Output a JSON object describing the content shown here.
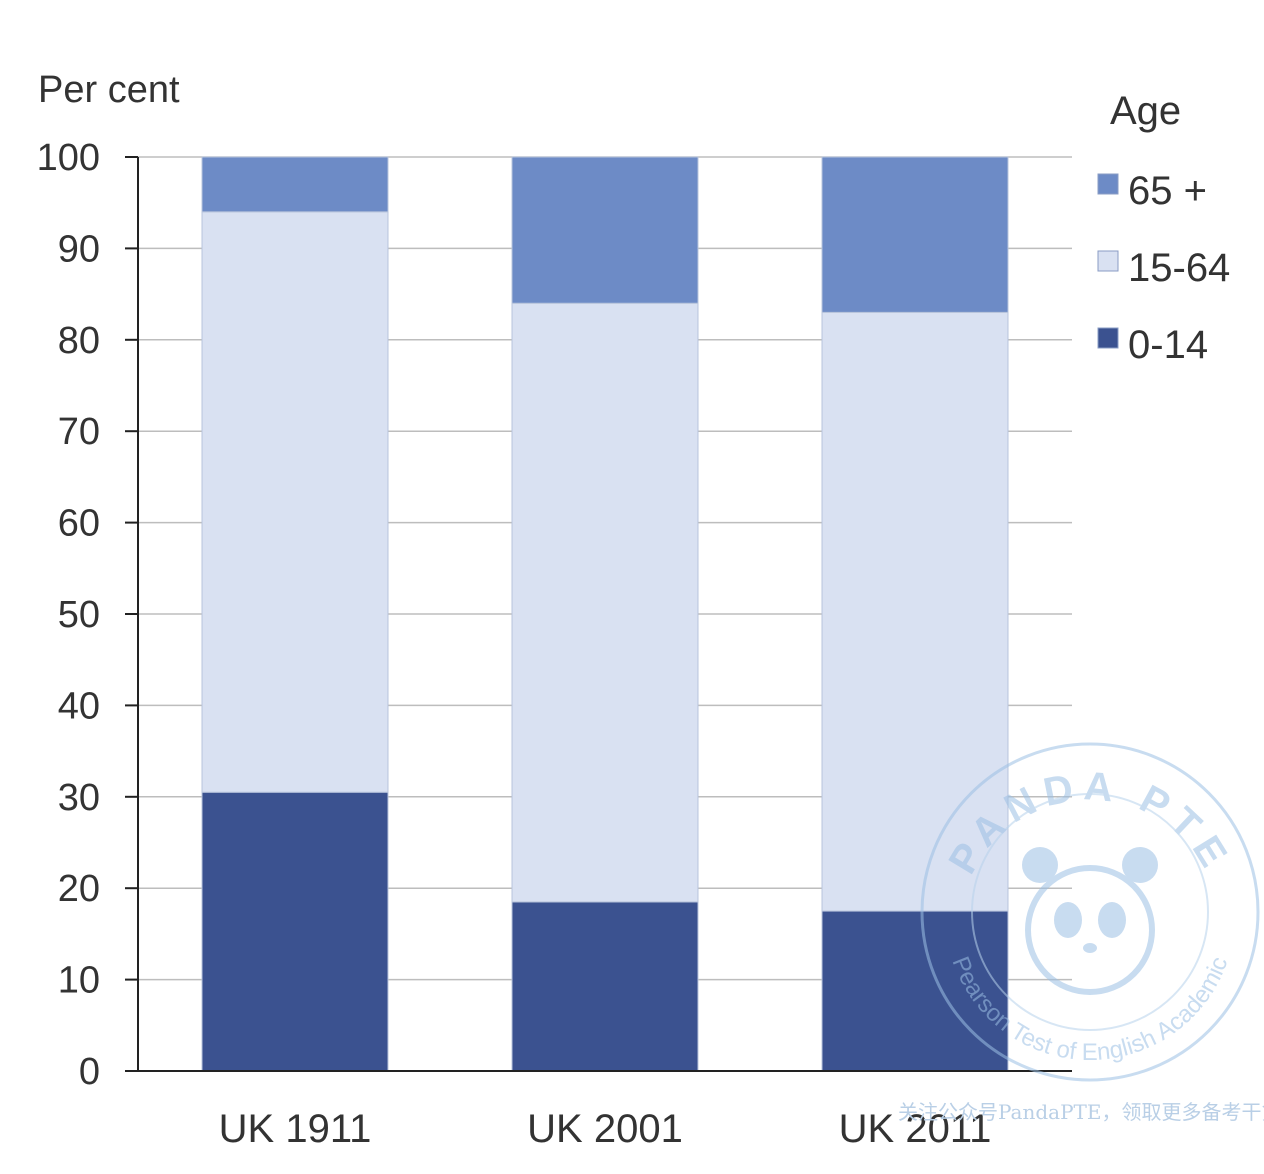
{
  "chart_data": {
    "type": "bar",
    "stacked": true,
    "categories": [
      "UK 1911",
      "UK 2001",
      "UK 2011"
    ],
    "series": [
      {
        "name": "0-14",
        "color": "#3b5290",
        "values": [
          30.5,
          18.5,
          17.5
        ]
      },
      {
        "name": "15-64",
        "color": "#d9e1f2",
        "values": [
          63.5,
          65.5,
          65.5
        ]
      },
      {
        "name": "65 +",
        "color": "#6d8bc6",
        "values": [
          6,
          16,
          17
        ]
      }
    ],
    "ylabel": "Per cent",
    "xlabel": "",
    "ylim": [
      0,
      100
    ],
    "yticks": [
      0,
      10,
      20,
      30,
      40,
      50,
      60,
      70,
      80,
      90,
      100
    ],
    "grid": true,
    "legend": {
      "title": "Age",
      "position": "right",
      "order": [
        "65 +",
        "15-64",
        "0-14"
      ]
    }
  },
  "watermark": {
    "arc_top": "PANDA PTE",
    "arc_bottom": "Pearson Test of English Academic",
    "note": "关注公众号PandaPTE，领取更多备考干货"
  }
}
